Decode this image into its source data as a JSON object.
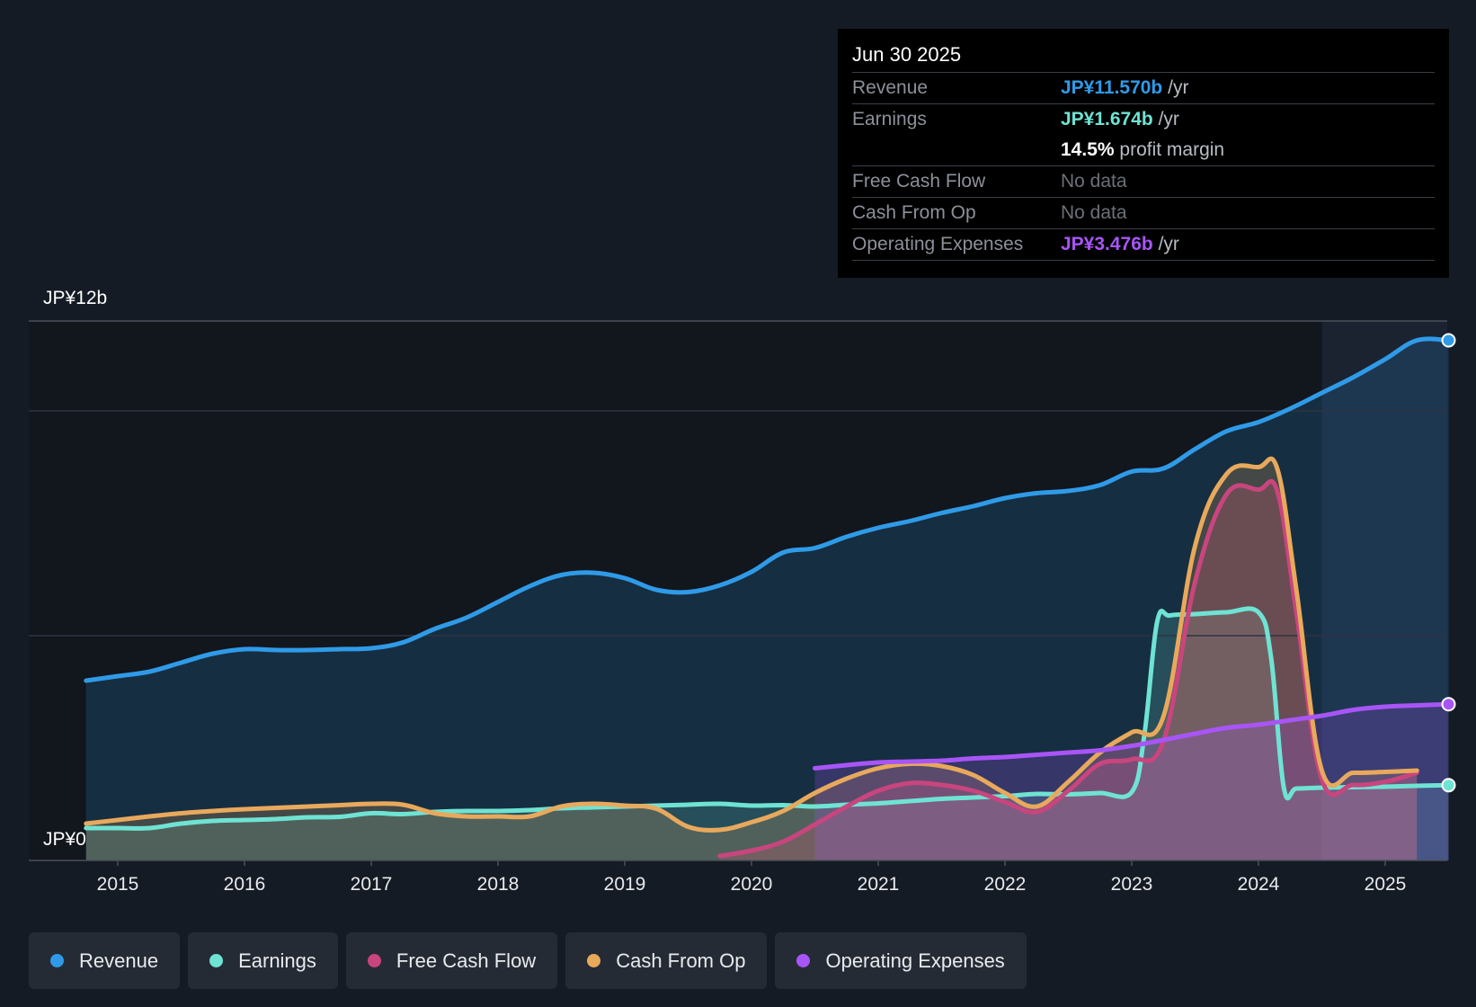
{
  "tooltip": {
    "date": "Jun 30 2025",
    "rows": {
      "revenue": {
        "label": "Revenue",
        "value": "JP¥11.570b",
        "unit": "/yr",
        "color": "#2f9be8"
      },
      "earnings": {
        "label": "Earnings",
        "value": "JP¥1.674b",
        "unit": "/yr",
        "color": "#6fe3d3"
      },
      "margin": {
        "value": "14.5%",
        "unit": "profit margin"
      },
      "fcf": {
        "label": "Free Cash Flow",
        "value": "No data"
      },
      "cfo": {
        "label": "Cash From Op",
        "value": "No data"
      },
      "opex": {
        "label": "Operating Expenses",
        "value": "JP¥3.476b",
        "unit": "/yr",
        "color": "#a855f7"
      }
    }
  },
  "legend": [
    {
      "label": "Revenue",
      "color": "#2f9be8"
    },
    {
      "label": "Earnings",
      "color": "#6fe3d3"
    },
    {
      "label": "Free Cash Flow",
      "color": "#c9457e"
    },
    {
      "label": "Cash From Op",
      "color": "#e8a95c"
    },
    {
      "label": "Operating Expenses",
      "color": "#a855f7"
    }
  ],
  "chart_data": {
    "type": "line",
    "y_top_label": "JP¥12b",
    "y_bottom_label": "JP¥0",
    "ylim": [
      0,
      12
    ],
    "xlim": [
      2014.3,
      2025.5
    ],
    "x_ticks": [
      "2015",
      "2016",
      "2017",
      "2018",
      "2019",
      "2020",
      "2021",
      "2022",
      "2023",
      "2024",
      "2025"
    ],
    "past_region_start": 2024.5,
    "series": [
      {
        "name": "Revenue",
        "color": "#2f9be8",
        "x": [
          2014.75,
          2015,
          2015.25,
          2015.5,
          2015.75,
          2016,
          2016.25,
          2016.5,
          2016.75,
          2017,
          2017.25,
          2017.5,
          2017.75,
          2018,
          2018.25,
          2018.5,
          2018.75,
          2019,
          2019.25,
          2019.5,
          2019.75,
          2020,
          2020.25,
          2020.5,
          2020.75,
          2021,
          2021.25,
          2021.5,
          2021.75,
          2022,
          2022.25,
          2022.5,
          2022.75,
          2023,
          2023.25,
          2023.5,
          2023.75,
          2024,
          2024.25,
          2024.5,
          2024.75,
          2025,
          2025.25,
          2025.5
        ],
        "y": [
          4.0,
          4.1,
          4.2,
          4.4,
          4.6,
          4.7,
          4.68,
          4.68,
          4.7,
          4.72,
          4.85,
          5.15,
          5.4,
          5.75,
          6.1,
          6.35,
          6.4,
          6.28,
          6.02,
          5.97,
          6.12,
          6.42,
          6.85,
          6.95,
          7.2,
          7.4,
          7.55,
          7.73,
          7.88,
          8.06,
          8.17,
          8.22,
          8.35,
          8.65,
          8.72,
          9.15,
          9.55,
          9.75,
          10.05,
          10.4,
          10.75,
          11.15,
          11.57,
          11.57
        ]
      },
      {
        "name": "Earnings",
        "color": "#6fe3d3",
        "x": [
          2014.75,
          2015,
          2015.25,
          2015.5,
          2015.75,
          2016,
          2016.25,
          2016.5,
          2016.75,
          2017,
          2017.25,
          2017.5,
          2017.75,
          2018,
          2018.25,
          2018.5,
          2018.75,
          2019,
          2019.25,
          2019.5,
          2019.75,
          2020,
          2020.25,
          2020.5,
          2020.75,
          2021,
          2021.25,
          2021.5,
          2021.75,
          2022,
          2022.25,
          2022.5,
          2022.75,
          2023,
          2023.1,
          2023.2,
          2023.3,
          2023.5,
          2023.75,
          2024,
          2024.1,
          2024.2,
          2024.3,
          2024.5,
          2024.75,
          2025,
          2025.25,
          2025.5
        ],
        "y": [
          0.72,
          0.72,
          0.72,
          0.82,
          0.88,
          0.9,
          0.92,
          0.96,
          0.97,
          1.05,
          1.03,
          1.08,
          1.1,
          1.1,
          1.12,
          1.16,
          1.18,
          1.2,
          1.22,
          1.24,
          1.26,
          1.22,
          1.23,
          1.2,
          1.24,
          1.27,
          1.32,
          1.37,
          1.4,
          1.43,
          1.48,
          1.47,
          1.5,
          1.52,
          2.8,
          5.3,
          5.45,
          5.48,
          5.52,
          5.52,
          4.5,
          1.62,
          1.6,
          1.62,
          1.63,
          1.64,
          1.66,
          1.674
        ]
      },
      {
        "name": "Free Cash Flow",
        "color": "#c9457e",
        "x": [
          2019.75,
          2020,
          2020.25,
          2020.5,
          2020.75,
          2021,
          2021.25,
          2021.5,
          2021.75,
          2022,
          2022.25,
          2022.5,
          2022.75,
          2023,
          2023.25,
          2023.5,
          2023.75,
          2024,
          2024.15,
          2024.3,
          2024.5,
          2024.75,
          2025,
          2025.25
        ],
        "y": [
          0.1,
          0.22,
          0.42,
          0.8,
          1.2,
          1.55,
          1.72,
          1.68,
          1.55,
          1.3,
          1.08,
          1.55,
          2.15,
          2.25,
          2.65,
          6.2,
          8.15,
          8.25,
          8.2,
          5.5,
          1.8,
          1.68,
          1.75,
          1.95
        ]
      },
      {
        "name": "Cash From Op",
        "color": "#e8a95c",
        "x": [
          2014.75,
          2015,
          2015.25,
          2015.5,
          2015.75,
          2016,
          2016.25,
          2016.5,
          2016.75,
          2017,
          2017.25,
          2017.5,
          2017.75,
          2018,
          2018.25,
          2018.5,
          2018.75,
          2019,
          2019.25,
          2019.5,
          2019.75,
          2020,
          2020.25,
          2020.5,
          2020.75,
          2021,
          2021.25,
          2021.5,
          2021.75,
          2022,
          2022.25,
          2022.5,
          2022.75,
          2023,
          2023.25,
          2023.5,
          2023.75,
          2024,
          2024.15,
          2024.3,
          2024.5,
          2024.75,
          2025,
          2025.25
        ],
        "y": [
          0.82,
          0.9,
          0.98,
          1.05,
          1.1,
          1.14,
          1.17,
          1.2,
          1.23,
          1.26,
          1.24,
          1.05,
          0.98,
          0.98,
          0.98,
          1.2,
          1.26,
          1.22,
          1.15,
          0.75,
          0.68,
          0.85,
          1.1,
          1.5,
          1.82,
          2.05,
          2.15,
          2.1,
          1.9,
          1.5,
          1.2,
          1.75,
          2.4,
          2.85,
          3.2,
          7.0,
          8.6,
          8.75,
          8.7,
          6.0,
          2.0,
          1.95,
          1.97,
          2.0
        ]
      },
      {
        "name": "Operating Expenses",
        "color": "#a855f7",
        "x": [
          2020.5,
          2020.75,
          2021,
          2021.25,
          2021.5,
          2021.75,
          2022,
          2022.25,
          2022.5,
          2022.75,
          2023,
          2023.25,
          2023.5,
          2023.75,
          2024,
          2024.25,
          2024.5,
          2024.75,
          2025,
          2025.25,
          2025.5
        ],
        "y": [
          2.05,
          2.12,
          2.18,
          2.2,
          2.22,
          2.27,
          2.3,
          2.35,
          2.4,
          2.45,
          2.55,
          2.68,
          2.82,
          2.95,
          3.02,
          3.12,
          3.22,
          3.35,
          3.42,
          3.45,
          3.476
        ]
      }
    ]
  }
}
